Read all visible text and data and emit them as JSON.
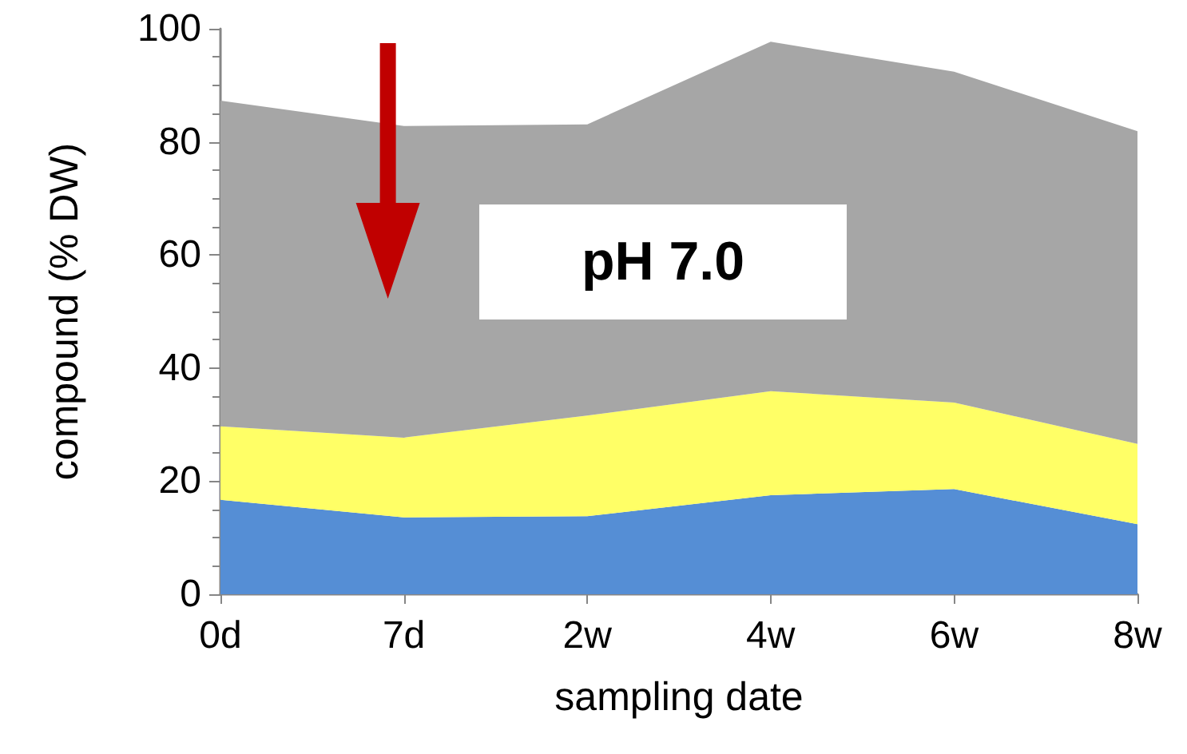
{
  "chart_data": {
    "type": "area",
    "stacked": true,
    "xlabel": "sampling date",
    "ylabel": "compound (% DW)",
    "categories": [
      "0d",
      "7d",
      "2w",
      "4w",
      "6w",
      "8w"
    ],
    "series": [
      {
        "color": "#558ed5",
        "values": [
          16.7,
          13.6,
          13.8,
          17.5,
          18.6,
          12.4
        ]
      },
      {
        "color": "#ffff66",
        "values": [
          13.0,
          14.1,
          17.8,
          18.4,
          15.3,
          14.2
        ]
      },
      {
        "color": "#a6a6a6",
        "values": [
          57.6,
          55.1,
          51.5,
          61.8,
          58.5,
          55.3
        ]
      }
    ],
    "ylim": [
      0,
      100
    ],
    "yticks": [
      0,
      20,
      40,
      60,
      80,
      100
    ],
    "grid": false,
    "annotations": [
      "pH 7.0"
    ]
  }
}
